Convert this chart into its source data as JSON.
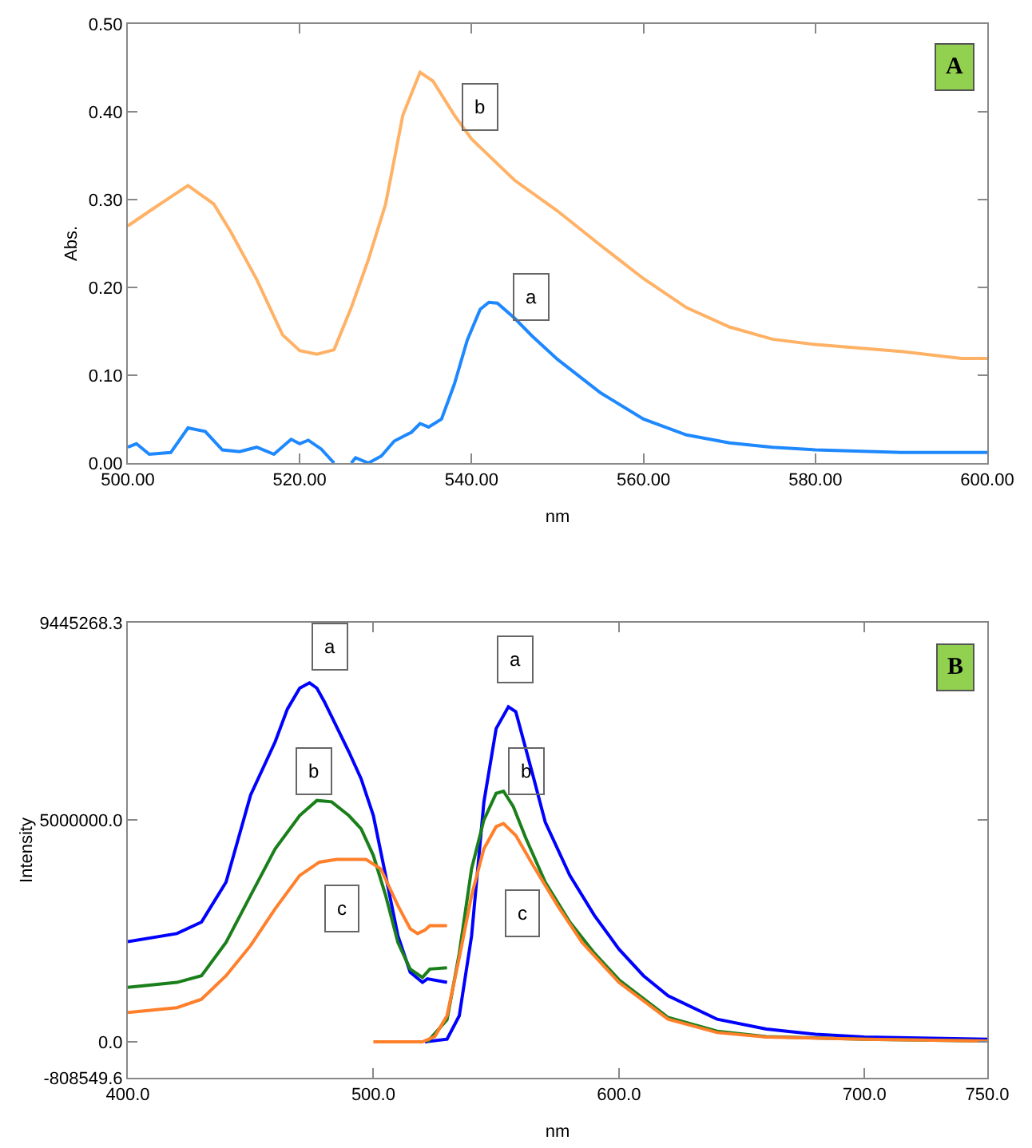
{
  "chart_data": [
    {
      "type": "line",
      "xlabel": "nm",
      "ylabel": "Abs.",
      "xlim": [
        500,
        600
      ],
      "ylim": [
        0,
        0.5
      ],
      "xticks": [
        {
          "value": 500,
          "label": "500.00"
        },
        {
          "value": 520,
          "label": "520.00"
        },
        {
          "value": 540,
          "label": "540.00"
        },
        {
          "value": 560,
          "label": "560.00"
        },
        {
          "value": 580,
          "label": "580.00"
        },
        {
          "value": 600,
          "label": "600.00"
        }
      ],
      "yticks": [
        {
          "value": 0,
          "label": "0.00"
        },
        {
          "value": 0.1,
          "label": "0.10"
        },
        {
          "value": 0.2,
          "label": "0.20"
        },
        {
          "value": 0.3,
          "label": "0.30"
        },
        {
          "value": 0.4,
          "label": "0.40"
        },
        {
          "value": 0.5,
          "label": "0.50"
        }
      ],
      "series": [
        {
          "color": "#1e88ff",
          "x": [
            500,
            501,
            502.5,
            505,
            507,
            509,
            511,
            513,
            515,
            517,
            519,
            520,
            521,
            522.5,
            524,
            525,
            526,
            526.5,
            528,
            529.5,
            531,
            533,
            534,
            535,
            536.5,
            538,
            539.5,
            541,
            542,
            543,
            545,
            547,
            550,
            555,
            560,
            565,
            570,
            575,
            580,
            590,
            600
          ],
          "values": [
            0.018,
            0.022,
            0.01,
            0.012,
            0.04,
            0.036,
            0.015,
            0.013,
            0.018,
            0.01,
            0.027,
            0.022,
            0.026,
            0.016,
            0.0,
            null,
            0.0,
            0.006,
            0.0,
            0.008,
            0.025,
            0.035,
            0.045,
            0.041,
            0.05,
            0.09,
            0.14,
            0.175,
            0.183,
            0.182,
            0.165,
            0.145,
            0.118,
            0.08,
            0.05,
            0.032,
            0.023,
            0.018,
            0.015,
            0.012,
            0.012
          ]
        },
        {
          "color": "#ffb266",
          "x": [
            500,
            503,
            507,
            510,
            512,
            515,
            518,
            520,
            522,
            524,
            526,
            528,
            530,
            532,
            534,
            535.5,
            538,
            540,
            545,
            550,
            555,
            560,
            565,
            570,
            575,
            580,
            590,
            597,
            600
          ],
          "values": [
            0.27,
            0.29,
            0.316,
            0.295,
            0.263,
            0.209,
            0.146,
            0.128,
            0.124,
            0.129,
            0.177,
            0.232,
            0.295,
            0.396,
            0.445,
            0.435,
            0.396,
            0.369,
            0.322,
            0.287,
            0.248,
            0.21,
            0.177,
            0.155,
            0.141,
            0.135,
            0.127,
            0.119,
            0.119
          ]
        }
      ],
      "annotations": [
        {
          "text": "b",
          "x": 541,
          "y": 0.405
        },
        {
          "text": "a",
          "x": 547,
          "y": 0.19
        },
        "A"
      ]
    },
    {
      "type": "line",
      "xlabel": "nm",
      "ylabel": "Intensity",
      "xlim": [
        400,
        750
      ],
      "ylim": [
        -808549.6,
        9445268.3
      ],
      "xticks": [
        {
          "value": 400,
          "label": "400.0"
        },
        {
          "value": 500,
          "label": "500.0"
        },
        {
          "value": 600,
          "label": "600.0"
        },
        {
          "value": 700,
          "label": "700.0"
        },
        {
          "value": 750,
          "label": "750.0"
        }
      ],
      "yticks": [
        {
          "value": -808549.6,
          "label": "-808549.6"
        },
        {
          "value": 0,
          "label": "0.0"
        },
        {
          "value": 5000000,
          "label": "5000000.0"
        },
        {
          "value": 9445268.3,
          "label": "9445268.3"
        }
      ],
      "series": [
        {
          "color": "#0000ff",
          "x": [
            400,
            420,
            430,
            440,
            450,
            460,
            465,
            470,
            474,
            477,
            480,
            490,
            495,
            500,
            505,
            510,
            515,
            520,
            522,
            530
          ],
          "values": [
            2260000,
            2440000,
            2700000,
            3600000,
            5560000,
            6760000,
            7500000,
            7970000,
            8090000,
            7970000,
            7670000,
            6540000,
            5930000,
            5100000,
            3750000,
            2390000,
            1570000,
            1340000,
            1420000,
            1340000
          ]
        },
        {
          "color": "#1a7f1a",
          "x": [
            400,
            420,
            430,
            440,
            450,
            460,
            470,
            477,
            483,
            490,
            495,
            500,
            505,
            510,
            515,
            520,
            523,
            530
          ],
          "values": [
            1230000,
            1340000,
            1490000,
            2240000,
            3300000,
            4350000,
            5100000,
            5440000,
            5410000,
            5100000,
            4800000,
            4200000,
            3300000,
            2240000,
            1640000,
            1450000,
            1640000,
            1670000
          ]
        },
        {
          "color": "#ff7f2a",
          "x": [
            400,
            420,
            430,
            440,
            450,
            460,
            470,
            478,
            485,
            497,
            503,
            510,
            515,
            518,
            521,
            523,
            530
          ],
          "values": [
            660000,
            770000,
            960000,
            1490000,
            2170000,
            3000000,
            3750000,
            4050000,
            4110000,
            4110000,
            3900000,
            3070000,
            2550000,
            2440000,
            2520000,
            2620000,
            2620000
          ]
        },
        {
          "color": "#0000ff",
          "x": [
            521,
            530,
            535,
            540,
            545,
            550,
            555,
            558,
            565,
            570,
            580,
            590,
            600,
            610,
            620,
            640,
            660,
            680,
            700,
            750
          ],
          "values": [
            0,
            60000,
            590000,
            2390000,
            5400000,
            7060000,
            7550000,
            7440000,
            6000000,
            4950000,
            3750000,
            2850000,
            2090000,
            1490000,
            1040000,
            510000,
            290000,
            170000,
            110000,
            60000
          ]
        },
        {
          "color": "#1a7f1a",
          "x": [
            522,
            530,
            535,
            540,
            545,
            550,
            553,
            557,
            562,
            570,
            580,
            590,
            600,
            620,
            640,
            660,
            700,
            750
          ],
          "values": [
            0,
            500000,
            2000000,
            3900000,
            5000000,
            5600000,
            5650000,
            5300000,
            4600000,
            3600000,
            2700000,
            2000000,
            1400000,
            550000,
            240000,
            120000,
            60000,
            20000
          ]
        },
        {
          "color": "#ff7f2a",
          "x": [
            500,
            520,
            525,
            530,
            535,
            540,
            545,
            550,
            553,
            558,
            565,
            575,
            585,
            600,
            620,
            640,
            660,
            700,
            750
          ],
          "values": [
            0,
            0,
            120000,
            590000,
            1900000,
            3300000,
            4350000,
            4850000,
            4920000,
            4650000,
            3980000,
            3070000,
            2240000,
            1340000,
            510000,
            210000,
            110000,
            60000,
            20000
          ]
        }
      ],
      "annotations": [
        {
          "text": "a",
          "x": 482,
          "y": 8900000
        },
        {
          "text": "b",
          "x": 476,
          "y": 6100000
        },
        {
          "text": "c",
          "x": 487,
          "y": 3000000
        },
        {
          "text": "a",
          "x": 558,
          "y": 8600000
        },
        {
          "text": "b",
          "x": 562,
          "y": 6100000
        },
        {
          "text": "c",
          "x": 561,
          "y": 2900000
        },
        "B"
      ]
    }
  ]
}
